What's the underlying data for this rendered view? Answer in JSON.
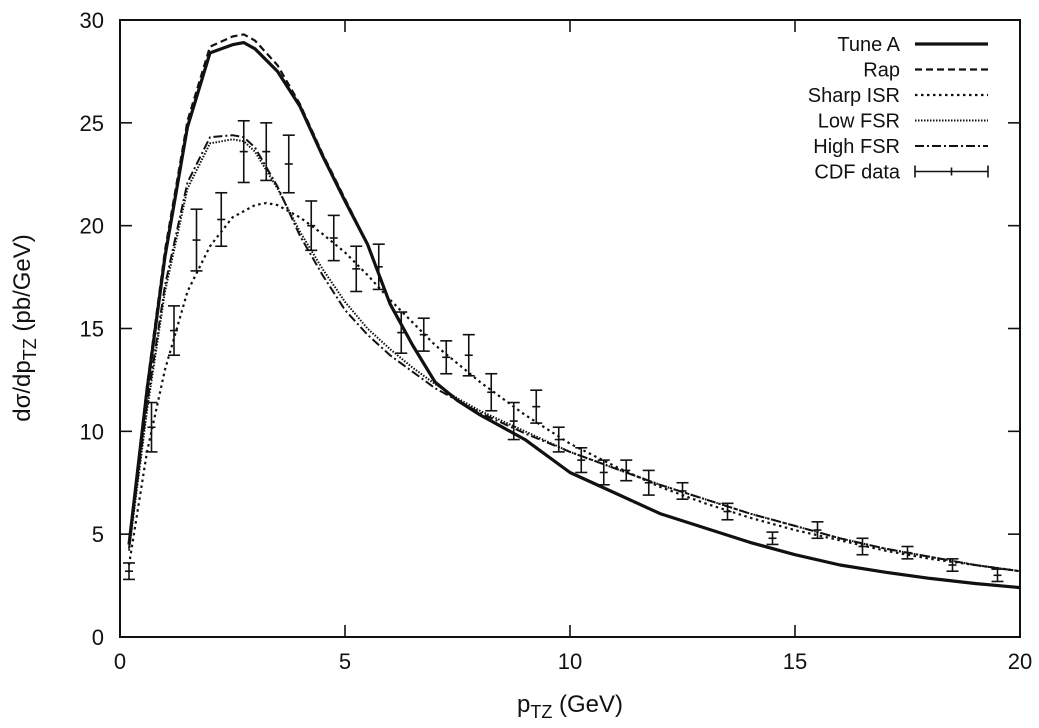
{
  "chart_data": {
    "type": "line",
    "title": "",
    "xlabel": "p",
    "xlabel_sub": "TZ",
    "xlabel_unit": " (GeV)",
    "ylabel": "dσ/dp",
    "ylabel_sub": "TZ",
    "ylabel_unit": " (pb/GeV)",
    "xlim": [
      0,
      20
    ],
    "ylim": [
      0,
      30
    ],
    "xticks": [
      0,
      5,
      10,
      15,
      20
    ],
    "yticks": [
      0,
      5,
      10,
      15,
      20,
      25,
      30
    ],
    "grid": false,
    "legend_position": "top-right",
    "colors": {
      "line": "#111111"
    },
    "series": [
      {
        "name": "Tune A",
        "style": "solid",
        "x": [
          0.2,
          0.6,
          1.0,
          1.5,
          2.0,
          2.5,
          2.75,
          3.0,
          3.5,
          4.0,
          4.5,
          5.0,
          5.5,
          6.0,
          6.5,
          7.0,
          7.5,
          8.0,
          8.5,
          9.0,
          10.0,
          11.0,
          12.0,
          13.0,
          14.0,
          15.0,
          16.0,
          17.0,
          18.0,
          19.0,
          20.0
        ],
        "y": [
          4.5,
          12.0,
          18.5,
          24.8,
          28.4,
          28.8,
          28.9,
          28.6,
          27.5,
          25.8,
          23.4,
          21.2,
          19.1,
          16.2,
          14.2,
          12.4,
          11.5,
          10.8,
          10.2,
          9.6,
          8.0,
          7.0,
          6.0,
          5.3,
          4.6,
          4.0,
          3.5,
          3.15,
          2.85,
          2.6,
          2.4
        ]
      },
      {
        "name": "Rap",
        "style": "dash",
        "x": [
          0.2,
          0.6,
          1.0,
          1.5,
          2.0,
          2.5,
          2.75,
          3.0,
          3.5,
          4.0,
          4.5,
          5.0,
          5.5,
          6.0,
          6.5,
          7.0,
          7.5,
          8.0,
          8.5,
          9.0,
          10.0,
          11.0,
          12.0,
          13.0,
          14.0,
          15.0,
          16.0,
          17.0,
          18.0,
          19.0,
          20.0
        ],
        "y": [
          4.5,
          12.2,
          18.8,
          25.1,
          28.7,
          29.2,
          29.3,
          29.0,
          27.8,
          25.9,
          23.5,
          21.3,
          19.1,
          16.2,
          14.2,
          12.4,
          11.5,
          10.8,
          10.2,
          9.6,
          8.0,
          7.0,
          6.0,
          5.3,
          4.6,
          4.0,
          3.5,
          3.15,
          2.85,
          2.6,
          2.4
        ]
      },
      {
        "name": "Sharp ISR",
        "style": "dot",
        "x": [
          0.2,
          0.6,
          1.0,
          1.5,
          2.0,
          2.5,
          3.0,
          3.25,
          3.5,
          4.0,
          4.5,
          5.0,
          5.5,
          6.0,
          6.5,
          7.0,
          7.5,
          8.0,
          8.5,
          9.0,
          10.0,
          11.0,
          12.0,
          13.0,
          14.0,
          15.0,
          16.0,
          17.0,
          18.0,
          19.0,
          20.0
        ],
        "y": [
          3.5,
          9.0,
          13.0,
          16.8,
          19.0,
          20.4,
          21.0,
          21.1,
          21.0,
          20.4,
          19.6,
          18.7,
          17.6,
          16.4,
          15.3,
          14.2,
          13.3,
          12.4,
          11.6,
          10.8,
          9.4,
          8.3,
          7.3,
          6.5,
          5.8,
          5.2,
          4.7,
          4.2,
          3.8,
          3.5,
          3.2
        ]
      },
      {
        "name": "Low FSR",
        "style": "dense-dot",
        "x": [
          0.2,
          0.6,
          1.0,
          1.5,
          2.0,
          2.5,
          2.75,
          3.0,
          3.5,
          4.0,
          4.5,
          5.0,
          5.5,
          6.0,
          6.5,
          7.0,
          7.5,
          8.0,
          8.5,
          9.0,
          10.0,
          11.0,
          12.0,
          13.0,
          14.0,
          15.0,
          16.0,
          17.0,
          18.0,
          19.0,
          20.0
        ],
        "y": [
          4.2,
          11.0,
          16.8,
          21.8,
          24.0,
          24.2,
          24.1,
          23.6,
          21.8,
          19.7,
          17.9,
          16.3,
          15.0,
          14.0,
          13.1,
          12.3,
          11.6,
          11.0,
          10.5,
          10.0,
          9.0,
          8.2,
          7.4,
          6.7,
          6.0,
          5.4,
          4.8,
          4.3,
          3.9,
          3.5,
          3.2
        ]
      },
      {
        "name": "High FSR",
        "style": "dash-dot",
        "x": [
          0.2,
          0.6,
          1.0,
          1.5,
          2.0,
          2.5,
          2.75,
          3.0,
          3.5,
          4.0,
          4.5,
          5.0,
          5.5,
          6.0,
          6.5,
          7.0,
          7.5,
          8.0,
          8.5,
          9.0,
          10.0,
          11.0,
          12.0,
          13.0,
          14.0,
          15.0,
          16.0,
          17.0,
          18.0,
          19.0,
          20.0
        ],
        "y": [
          4.3,
          11.3,
          17.1,
          22.1,
          24.3,
          24.4,
          24.3,
          23.8,
          21.9,
          19.5,
          17.6,
          15.9,
          14.7,
          13.7,
          12.9,
          12.1,
          11.5,
          10.9,
          10.4,
          9.9,
          9.0,
          8.2,
          7.4,
          6.7,
          6.0,
          5.4,
          4.8,
          4.3,
          3.9,
          3.5,
          3.2
        ]
      }
    ],
    "data_points": {
      "name": "CDF data",
      "style": "errorbar",
      "x": [
        0.2,
        0.7,
        1.2,
        1.7,
        2.25,
        2.75,
        3.25,
        3.75,
        4.25,
        4.75,
        5.25,
        5.75,
        6.25,
        6.75,
        7.25,
        7.75,
        8.25,
        8.75,
        9.25,
        9.75,
        10.25,
        10.75,
        11.25,
        11.75,
        12.5,
        13.5,
        14.5,
        15.5,
        16.5,
        17.5,
        18.5,
        19.5
      ],
      "y": [
        3.2,
        10.2,
        14.9,
        19.3,
        20.3,
        23.6,
        23.6,
        23.0,
        20.0,
        19.4,
        17.9,
        18.0,
        14.8,
        14.7,
        13.6,
        13.7,
        11.9,
        10.5,
        11.2,
        9.6,
        8.6,
        8.0,
        8.1,
        7.5,
        7.1,
        6.1,
        4.8,
        5.2,
        4.4,
        4.1,
        3.5,
        3.0
      ],
      "err": [
        0.4,
        1.2,
        1.2,
        1.5,
        1.3,
        1.5,
        1.4,
        1.4,
        1.2,
        1.1,
        1.1,
        1.1,
        1.0,
        0.8,
        0.8,
        1.0,
        0.9,
        0.9,
        0.8,
        0.6,
        0.6,
        0.6,
        0.5,
        0.6,
        0.4,
        0.4,
        0.3,
        0.4,
        0.4,
        0.3,
        0.3,
        0.3
      ]
    }
  }
}
